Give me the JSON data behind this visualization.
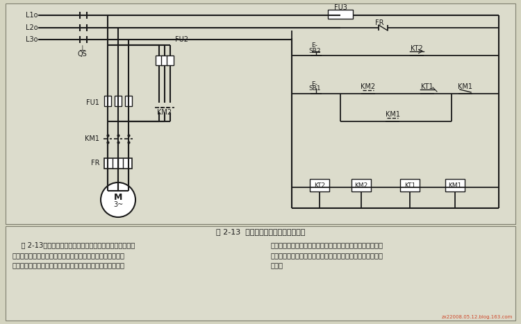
{
  "bg_color": "#c8c8b4",
  "fig_bg": "#c8c8b4",
  "title": "图 2-13  带起动熔断器的自动控制线路",
  "caption_left": "    图 2-13所示为采用带起动熔断器的自动控制线路，该线路\n中增加了一套起动熔断器，与原有的一套熔断器并联在主电路\n内共同工作。待电动机起动过程完成，进入正常运行时，增加",
  "caption_right": "的那套起动熔断器自动退出。这样就可以将长期运行的那套熔\n断器熔丝的额定电流选得与电动机的额定电流一致，从而得到\n保护。",
  "watermark": "zx22008.05.12.blog.163.com",
  "lc": "#1a1a1a",
  "tc": "#1a1a1a",
  "circuit_bg": "#d4d4c0",
  "text_bg": "#d4d4c0"
}
